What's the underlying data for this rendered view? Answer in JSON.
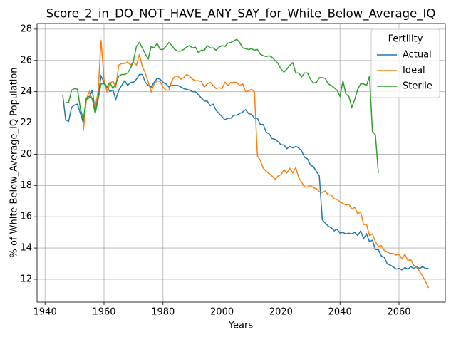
{
  "chart_data": {
    "type": "line",
    "title": "Score_2_in_DO_NOT_HAVE_ANY_SAY_for_White_Below_Average_IQ",
    "xlabel": "Years",
    "ylabel": "% of White Below_Average_IQ Population",
    "legend_title": "Fertility",
    "legend": "upper right",
    "grid": true,
    "xlim": [
      1937.3,
      2075.7
    ],
    "ylim": [
      10.54,
      28.36
    ],
    "xticks": [
      1940,
      1960,
      1980,
      2000,
      2020,
      2040,
      2060
    ],
    "yticks": [
      12,
      14,
      16,
      18,
      20,
      22,
      24,
      26,
      28
    ],
    "x": [
      1946,
      1947,
      1948,
      1949,
      1950,
      1951,
      1952,
      1953,
      1954,
      1955,
      1956,
      1957,
      1958,
      1959,
      1960,
      1961,
      1962,
      1963,
      1964,
      1965,
      1966,
      1967,
      1968,
      1969,
      1970,
      1971,
      1972,
      1973,
      1974,
      1975,
      1976,
      1977,
      1978,
      1979,
      1980,
      1981,
      1982,
      1983,
      1984,
      1985,
      1986,
      1987,
      1988,
      1989,
      1990,
      1991,
      1992,
      1993,
      1994,
      1995,
      1996,
      1997,
      1998,
      1999,
      2000,
      2001,
      2002,
      2003,
      2004,
      2005,
      2006,
      2007,
      2008,
      2009,
      2010,
      2011,
      2012,
      2013,
      2014,
      2015,
      2016,
      2017,
      2018,
      2019,
      2020,
      2021,
      2022,
      2023,
      2024,
      2025,
      2026,
      2027,
      2028,
      2029,
      2030,
      2031,
      2032,
      2033,
      2034,
      2035,
      2036,
      2037,
      2038,
      2039,
      2040,
      2041,
      2042,
      2043,
      2044,
      2045,
      2046,
      2047,
      2048,
      2049,
      2050,
      2051,
      2052,
      2053,
      2054,
      2055,
      2056,
      2057,
      2058,
      2059,
      2060,
      2061,
      2062,
      2063,
      2064,
      2065,
      2066,
      2067,
      2068,
      2069,
      2070
    ],
    "series": [
      {
        "name": "Actual",
        "color": "#1f77b4",
        "values": [
          23.8,
          22.2,
          22.1,
          23.0,
          23.15,
          23.2,
          22.6,
          22.0,
          23.5,
          23.6,
          24.1,
          22.8,
          23.7,
          25.0,
          24.6,
          24.3,
          24.0,
          24.1,
          23.5,
          24.1,
          24.4,
          24.7,
          24.4,
          24.6,
          24.6,
          24.8,
          25.1,
          25.1,
          24.6,
          24.4,
          24.3,
          24.6,
          24.85,
          24.8,
          24.6,
          24.5,
          24.3,
          24.4,
          24.4,
          24.4,
          24.3,
          24.2,
          24.15,
          24.1,
          24.0,
          24.0,
          23.8,
          23.6,
          23.4,
          23.4,
          23.1,
          23.2,
          22.8,
          22.6,
          22.4,
          22.2,
          22.3,
          22.3,
          22.5,
          22.5,
          22.6,
          22.7,
          22.85,
          22.6,
          22.55,
          22.3,
          22.3,
          21.9,
          21.9,
          21.4,
          21.3,
          21.0,
          20.95,
          20.8,
          20.6,
          20.6,
          20.35,
          20.5,
          20.4,
          20.5,
          20.4,
          20.2,
          19.8,
          19.7,
          19.3,
          19.2,
          18.9,
          18.6,
          15.8,
          15.6,
          15.4,
          15.3,
          15.1,
          15.2,
          14.95,
          15.0,
          14.9,
          14.95,
          14.9,
          15.0,
          14.8,
          15.1,
          14.6,
          14.9,
          14.4,
          14.5,
          13.9,
          13.9,
          13.5,
          13.4,
          13.0,
          12.9,
          12.8,
          12.65,
          12.7,
          12.6,
          12.75,
          12.65,
          12.8,
          12.7,
          12.8,
          12.7,
          12.8,
          12.7,
          12.7
        ]
      },
      {
        "name": "Ideal",
        "color": "#ff7f0e",
        "values": [
          null,
          null,
          null,
          null,
          null,
          null,
          null,
          21.5,
          23.5,
          24.0,
          23.5,
          23.0,
          24.0,
          27.3,
          24.8,
          24.0,
          24.5,
          24.7,
          24.3,
          25.7,
          25.8,
          25.8,
          25.9,
          25.7,
          25.9,
          25.7,
          26.4,
          25.6,
          25.2,
          24.6,
          24.0,
          24.5,
          24.7,
          24.65,
          24.3,
          24.1,
          24.1,
          24.7,
          25.0,
          25.0,
          24.8,
          24.9,
          25.1,
          25.0,
          24.8,
          24.7,
          24.7,
          24.65,
          24.3,
          24.5,
          24.6,
          24.4,
          24.2,
          24.25,
          24.2,
          24.6,
          24.4,
          24.6,
          24.6,
          24.6,
          24.4,
          24.5,
          24.0,
          24.05,
          24.15,
          24.0,
          19.9,
          19.6,
          19.1,
          18.9,
          18.75,
          18.6,
          18.4,
          18.6,
          18.7,
          19.0,
          18.8,
          19.1,
          18.8,
          19.15,
          18.5,
          18.2,
          17.9,
          17.9,
          18.0,
          17.85,
          17.8,
          17.6,
          17.55,
          17.65,
          17.4,
          17.4,
          17.15,
          17.1,
          16.95,
          16.85,
          16.75,
          16.8,
          16.5,
          16.6,
          16.2,
          16.3,
          15.5,
          15.5,
          14.8,
          14.9,
          14.4,
          14.1,
          14.15,
          13.85,
          13.75,
          13.65,
          13.65,
          13.55,
          13.6,
          13.3,
          13.6,
          13.2,
          13.25,
          12.9,
          12.75,
          12.5,
          12.2,
          11.85,
          11.45
        ]
      },
      {
        "name": "Sterile",
        "color": "#2ca02c",
        "values": [
          null,
          23.3,
          23.3,
          24.1,
          24.2,
          24.15,
          22.9,
          22.2,
          23.6,
          23.7,
          23.6,
          22.6,
          23.5,
          24.5,
          24.5,
          24.3,
          24.6,
          24.2,
          24.5,
          25.0,
          25.1,
          25.1,
          25.2,
          25.5,
          26.0,
          26.9,
          27.15,
          26.8,
          26.4,
          26.1,
          26.9,
          26.8,
          27.1,
          26.7,
          26.7,
          26.9,
          27.15,
          26.95,
          26.7,
          26.6,
          26.6,
          26.7,
          26.85,
          26.95,
          26.8,
          26.85,
          26.5,
          26.65,
          26.65,
          26.95,
          26.8,
          26.8,
          26.65,
          26.85,
          26.95,
          26.9,
          27.1,
          27.15,
          27.25,
          27.35,
          27.15,
          26.8,
          26.75,
          26.7,
          26.75,
          26.65,
          26.7,
          26.4,
          26.3,
          26.25,
          26.3,
          26.2,
          26.0,
          25.8,
          25.45,
          25.25,
          25.45,
          25.7,
          25.85,
          25.2,
          25.2,
          24.95,
          25.2,
          25.2,
          24.8,
          24.55,
          24.6,
          24.9,
          24.9,
          24.85,
          24.5,
          24.4,
          24.25,
          24.1,
          23.7,
          24.7,
          23.85,
          23.7,
          23.0,
          23.5,
          24.15,
          24.5,
          24.5,
          24.4,
          25.0,
          21.45,
          21.25,
          18.8,
          null,
          null,
          null,
          null,
          null,
          null,
          null,
          null,
          null,
          null,
          null,
          null,
          null,
          null,
          null,
          null,
          null
        ]
      }
    ]
  }
}
